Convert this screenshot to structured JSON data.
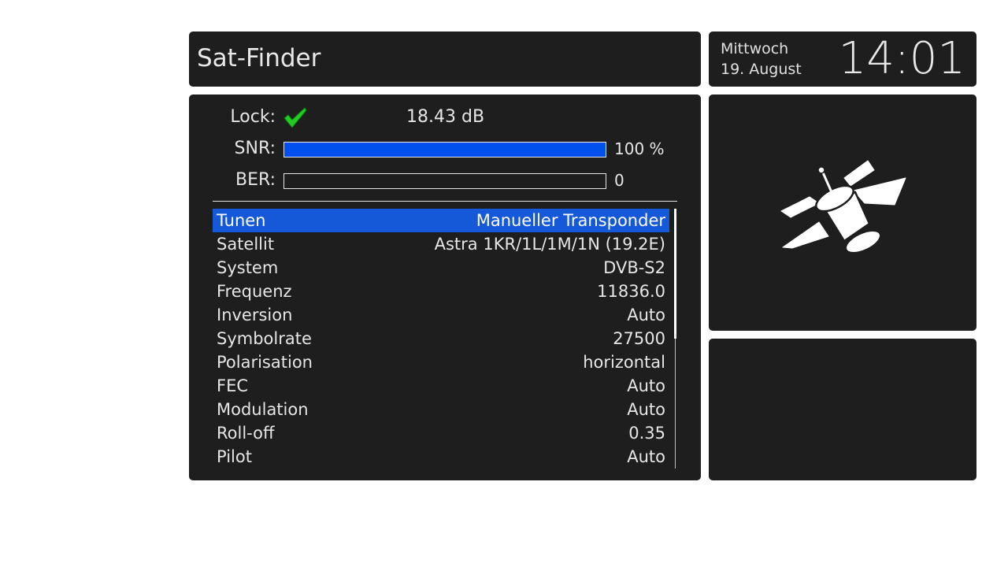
{
  "header": {
    "title": "Sat-Finder"
  },
  "clock": {
    "weekday": "Mittwoch",
    "date": "19. August",
    "time": "14:01"
  },
  "signal": {
    "lock_label": "Lock:",
    "lock_state": "locked",
    "lock_value": "18.43 dB",
    "snr_label": "SNR:",
    "snr_percent": 100,
    "snr_text": "100 %",
    "ber_label": "BER:",
    "ber_fill": 0,
    "ber_text": "0",
    "snr_bar_color": "#0050ee"
  },
  "menu": {
    "selected_index": 0,
    "selected_color": "#1558d8",
    "items": [
      {
        "label": "Tunen",
        "value": "Manueller Transponder"
      },
      {
        "label": "Satellit",
        "value": "Astra 1KR/1L/1M/1N (19.2E)"
      },
      {
        "label": "System",
        "value": "DVB-S2"
      },
      {
        "label": "Frequenz",
        "value": "11836.0"
      },
      {
        "label": "Inversion",
        "value": "Auto"
      },
      {
        "label": "Symbolrate",
        "value": "27500"
      },
      {
        "label": "Polarisation",
        "value": "horizontal"
      },
      {
        "label": "FEC",
        "value": "Auto"
      },
      {
        "label": "Modulation",
        "value": "Auto"
      },
      {
        "label": "Roll-off",
        "value": "0.35"
      },
      {
        "label": "Pilot",
        "value": "Auto"
      }
    ]
  },
  "icons": {
    "lock": "check-icon",
    "preview": "satellite-icon"
  }
}
